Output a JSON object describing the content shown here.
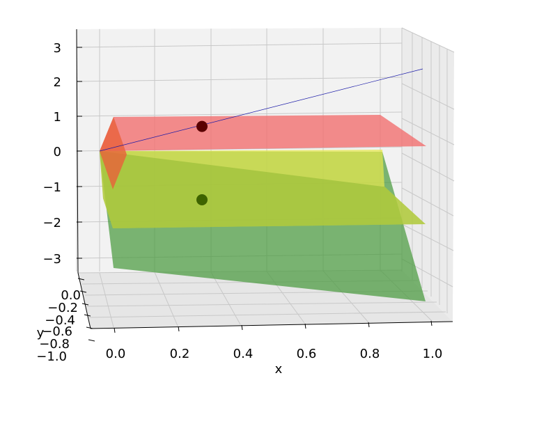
{
  "chart_data": {
    "type": "surface3d",
    "title": "",
    "xlabel": "x",
    "ylabel": "y",
    "zlabel": "",
    "x_ticks": [
      "0.0",
      "0.2",
      "0.4",
      "0.6",
      "0.8",
      "1.0"
    ],
    "y_ticks": [
      "0.0",
      "−0.2",
      "−0.4",
      "−0.6",
      "−0.8",
      "−1.0"
    ],
    "z_ticks": [
      "3",
      "2",
      "1",
      "0",
      "−1",
      "−2",
      "−3"
    ],
    "xlim": [
      0,
      1
    ],
    "ylim": [
      -1,
      0
    ],
    "zlim": [
      -3.4,
      3.4
    ],
    "grid": true,
    "planes": [
      {
        "color": "#f26d6d",
        "z": 0.7
      },
      {
        "color": "#e6e84e",
        "z": -1.4
      },
      {
        "color": "#4a9a3e",
        "z_at_x0": 0.0,
        "z_at_x1": -3.9
      }
    ],
    "points": [
      {
        "x": 0.3,
        "y": -0.5,
        "z": 0.7,
        "color": "#5a0000"
      },
      {
        "x": 0.3,
        "y": -0.5,
        "z": -1.4,
        "color": "#3e6300"
      }
    ],
    "line": {
      "from": [
        0,
        0,
        0
      ],
      "to": [
        1,
        0,
        2.3
      ],
      "color": "#1a1aa8"
    }
  }
}
